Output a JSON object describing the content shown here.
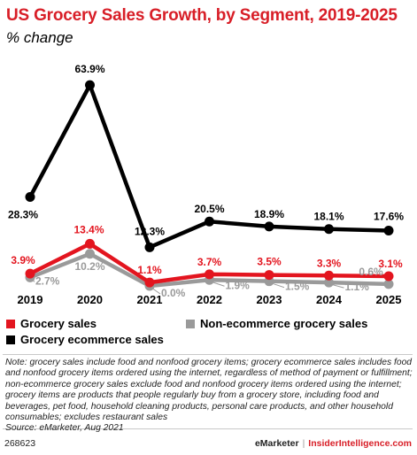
{
  "title": "US Grocery Sales Growth, by Segment, 2019-2025",
  "subtitle": "% change",
  "colors": {
    "title": "#d81e27",
    "grocery_sales": "#e3151f",
    "grocery_ecommerce": "#000000",
    "non_ecommerce": "#9a9a9a"
  },
  "chart_data": {
    "type": "line",
    "categories": [
      "2019",
      "2020",
      "2021",
      "2022",
      "2023",
      "2024",
      "2025"
    ],
    "ylim": [
      0,
      70
    ],
    "grid": false,
    "legend_position": "bottom",
    "series": [
      {
        "key": "ecom",
        "name": "Grocery ecommerce sales",
        "values": [
          28.3,
          63.9,
          12.3,
          20.5,
          18.9,
          18.1,
          17.6
        ],
        "labels": [
          "28.3%",
          "63.9%",
          "12.3%",
          "20.5%",
          "18.9%",
          "18.1%",
          "17.6%"
        ]
      },
      {
        "key": "grocery",
        "name": "Grocery sales",
        "values": [
          3.9,
          13.4,
          1.1,
          3.7,
          3.5,
          3.3,
          3.1
        ],
        "labels": [
          "3.9%",
          "13.4%",
          "1.1%",
          "3.7%",
          "3.5%",
          "3.3%",
          "3.1%"
        ]
      },
      {
        "key": "nonecom",
        "name": "Non-ecommerce grocery sales",
        "values": [
          2.7,
          10.2,
          0.0,
          1.9,
          1.5,
          1.1,
          0.6
        ],
        "labels": [
          "2.7%",
          "10.2%",
          "0.0%",
          "1.9%",
          "1.5%",
          "1.1%",
          "0.6%"
        ]
      }
    ]
  },
  "legend": {
    "grocery": "Grocery sales",
    "nonecom": "Non-ecommerce grocery sales",
    "ecom": "Grocery ecommerce sales"
  },
  "note": "Note: grocery sales include food and nonfood grocery items; grocery ecommerce sales includes food and nonfood grocery items ordered using the internet, regardless of method of payment or fulfillment; non-ecommerce grocery sales exclude food and nonfood grocery items ordered using the internet; grocery items are products that people regularly buy from a grocery store, including food and beverages, pet food, household cleaning products, personal care products, and other household consumables; excludes restaurant sales",
  "source": "Source: eMarketer, Aug 2021",
  "footer": {
    "id": "268623",
    "brand": "eMarketer",
    "separator": "|",
    "site": "InsiderIntelligence.com"
  }
}
